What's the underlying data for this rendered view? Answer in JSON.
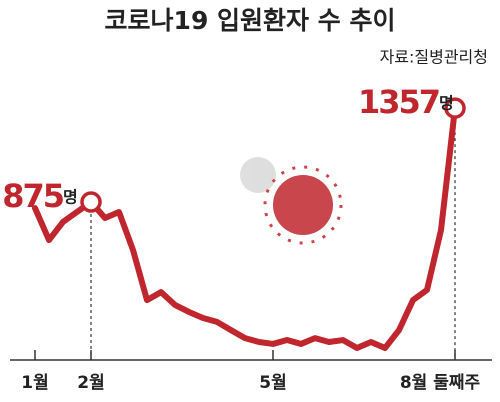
{
  "chart_data": {
    "type": "line",
    "title": "코로나19 입원환자 수 추이",
    "source": "자료:질병관리청",
    "categories": [
      "1월",
      null,
      null,
      null,
      "2월",
      null,
      null,
      null,
      null,
      null,
      null,
      null,
      null,
      null,
      null,
      null,
      null,
      "5월",
      null,
      null,
      null,
      null,
      null,
      null,
      null,
      null,
      null,
      null,
      null,
      null,
      "8월 둘째주"
    ],
    "values": [
      844,
      680,
      773,
      824,
      875,
      793,
      824,
      629,
      372,
      413,
      347,
      311,
      280,
      260,
      218,
      177,
      157,
      147,
      167,
      147,
      177,
      157,
      167,
      126,
      157,
      126,
      218,
      372,
      424,
      731,
      1357
    ],
    "value_labels": [
      null,
      null,
      null,
      null,
      "875",
      null,
      null,
      null,
      null,
      null,
      null,
      null,
      null,
      null,
      null,
      null,
      null,
      null,
      null,
      null,
      null,
      null,
      null,
      null,
      null,
      null,
      null,
      null,
      null,
      null,
      "1357"
    ],
    "value_label_unit": "명",
    "color": "#c0262d",
    "grid": false
  }
}
